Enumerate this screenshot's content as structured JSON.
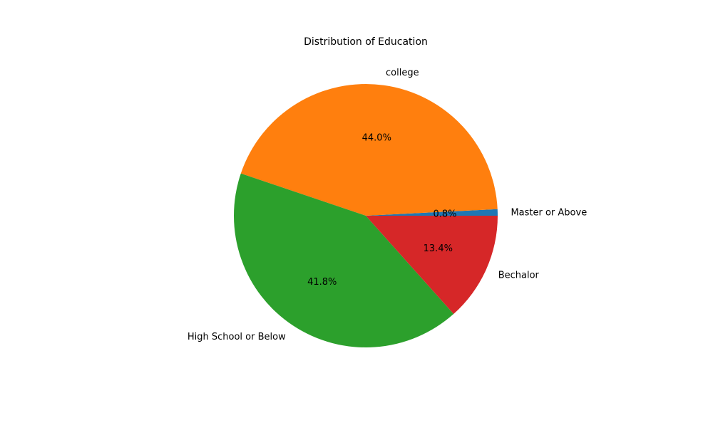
{
  "chart_data": {
    "type": "pie",
    "title": "Distribution of Education",
    "slices": [
      {
        "label": "Master or Above",
        "value": 0.8,
        "pct_label": "0.8%",
        "color": "#1f77b4"
      },
      {
        "label": "college",
        "value": 44.0,
        "pct_label": "44.0%",
        "color": "#ff7f0e"
      },
      {
        "label": "High School or Below",
        "value": 41.8,
        "pct_label": "41.8%",
        "color": "#2ca02c"
      },
      {
        "label": "Bechalor",
        "value": 13.4,
        "pct_label": "13.4%",
        "color": "#d62728"
      }
    ],
    "start_angle_deg": 0,
    "direction": "counterclockwise",
    "legend": "none"
  }
}
